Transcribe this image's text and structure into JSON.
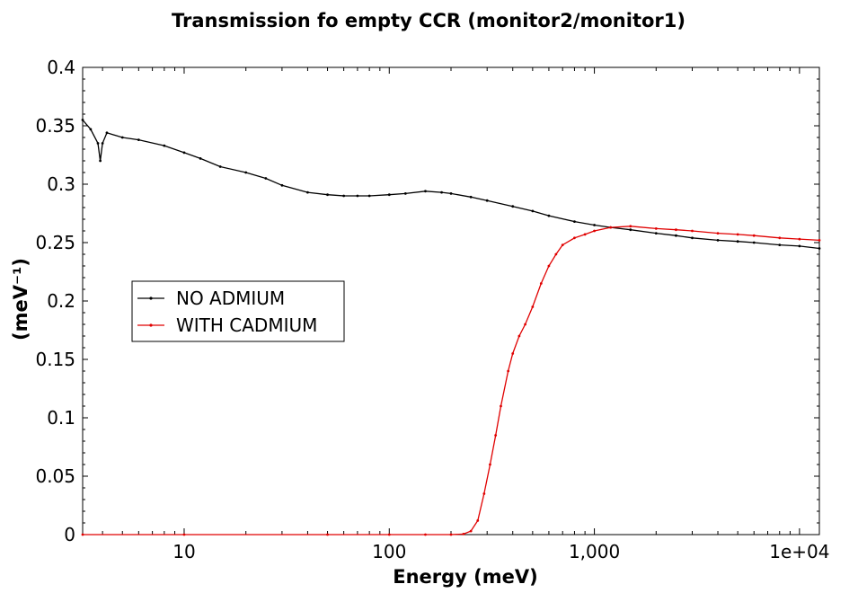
{
  "chart_data": {
    "type": "line",
    "title": "Transmission fo empty CCR (monitor2/monitor1)",
    "xlabel": "Energy (meV)",
    "ylabel": "(meV⁻¹)",
    "x_scale": "log",
    "xlim": [
      3.2,
      12500
    ],
    "ylim": [
      0,
      0.4
    ],
    "x_ticks": [
      10,
      100,
      1000,
      10000
    ],
    "x_tick_labels": [
      "10",
      "100",
      "1,000",
      "1e+04"
    ],
    "y_ticks": [
      0,
      0.05,
      0.1,
      0.15,
      0.2,
      0.25,
      0.3,
      0.35,
      0.4
    ],
    "y_tick_labels": [
      "0",
      "0.05",
      "0.1",
      "0.15",
      "0.2",
      "0.25",
      "0.3",
      "0.35",
      "0.4"
    ],
    "legend_position": "middle-left",
    "series": [
      {
        "name": "NO ADMIUM",
        "color": "#000000",
        "x": [
          3.2,
          3.5,
          3.8,
          3.9,
          4.0,
          4.2,
          5,
          6,
          8,
          10,
          12,
          15,
          20,
          25,
          30,
          40,
          50,
          60,
          70,
          80,
          100,
          120,
          150,
          180,
          200,
          250,
          300,
          400,
          500,
          600,
          800,
          1000,
          1200,
          1500,
          2000,
          2500,
          3000,
          4000,
          5000,
          6000,
          8000,
          10000,
          12500
        ],
        "y": [
          0.355,
          0.347,
          0.335,
          0.32,
          0.335,
          0.344,
          0.34,
          0.338,
          0.333,
          0.327,
          0.322,
          0.315,
          0.31,
          0.305,
          0.299,
          0.293,
          0.291,
          0.29,
          0.29,
          0.29,
          0.291,
          0.292,
          0.294,
          0.293,
          0.292,
          0.289,
          0.286,
          0.281,
          0.277,
          0.273,
          0.268,
          0.265,
          0.263,
          0.261,
          0.258,
          0.256,
          0.254,
          0.252,
          0.251,
          0.25,
          0.248,
          0.247,
          0.245
        ]
      },
      {
        "name": "WITH CADMIUM",
        "color": "#e00000",
        "x": [
          3.2,
          10,
          50,
          100,
          150,
          200,
          230,
          250,
          270,
          290,
          310,
          330,
          350,
          380,
          400,
          430,
          460,
          500,
          550,
          600,
          650,
          700,
          800,
          900,
          1000,
          1200,
          1500,
          2000,
          2500,
          3000,
          4000,
          5000,
          6000,
          8000,
          10000,
          12500
        ],
        "y": [
          0,
          0,
          0,
          0,
          0,
          0,
          0.0005,
          0.003,
          0.012,
          0.035,
          0.06,
          0.085,
          0.11,
          0.14,
          0.155,
          0.17,
          0.18,
          0.195,
          0.215,
          0.23,
          0.24,
          0.248,
          0.254,
          0.257,
          0.26,
          0.263,
          0.264,
          0.262,
          0.261,
          0.26,
          0.258,
          0.257,
          0.256,
          0.254,
          0.253,
          0.252
        ]
      }
    ]
  }
}
